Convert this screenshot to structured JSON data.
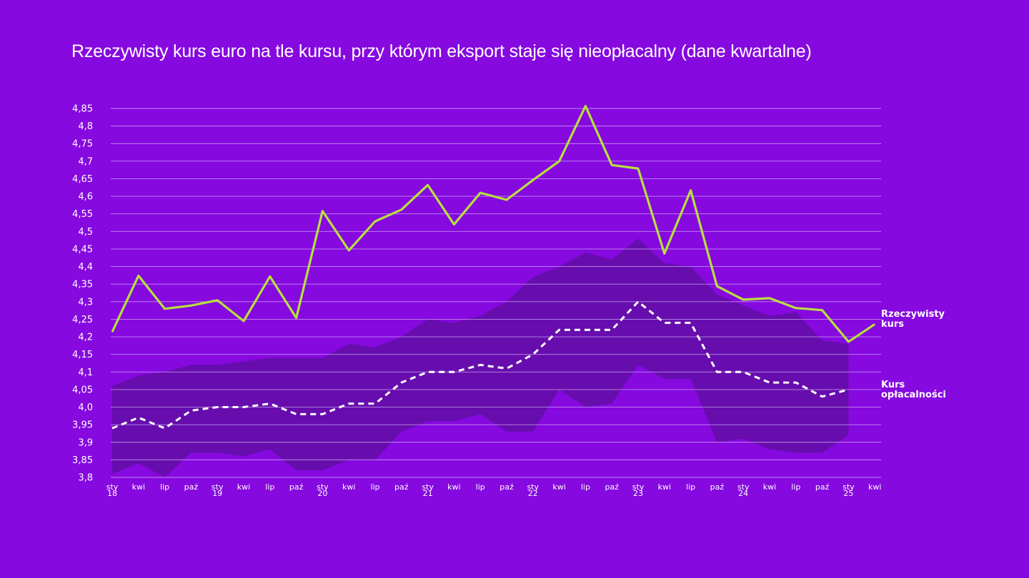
{
  "chart_data": {
    "type": "line",
    "title": "Rzeczywisty kurs euro na tle kursu, przy którym eksport staje się nieopłacalny (dane kwartalne)",
    "xlabel": "",
    "ylabel": "",
    "ylim": [
      3.8,
      4.85
    ],
    "grid": true,
    "y_ticks": [
      "4,85",
      "4,8",
      "4,75",
      "4,7",
      "4,65",
      "4,6",
      "4,55",
      "4,5",
      "4,45",
      "4,4",
      "4,35",
      "4,3",
      "4,25",
      "4,2",
      "4,15",
      "4,1",
      "4,05",
      "4,0",
      "3,95",
      "3,9",
      "3,85",
      "3,8"
    ],
    "y_tick_values": [
      4.85,
      4.8,
      4.75,
      4.7,
      4.65,
      4.6,
      4.55,
      4.5,
      4.45,
      4.4,
      4.35,
      4.3,
      4.25,
      4.2,
      4.15,
      4.1,
      4.05,
      4.0,
      3.95,
      3.9,
      3.85,
      3.8
    ],
    "x_ticks": [
      {
        "label": "sty",
        "sub": "18"
      },
      {
        "label": "kwi",
        "sub": ""
      },
      {
        "label": "lip",
        "sub": ""
      },
      {
        "label": "paź",
        "sub": ""
      },
      {
        "label": "sty",
        "sub": "19"
      },
      {
        "label": "kwi",
        "sub": ""
      },
      {
        "label": "lip",
        "sub": ""
      },
      {
        "label": "paź",
        "sub": ""
      },
      {
        "label": "sty",
        "sub": "20"
      },
      {
        "label": "kwi",
        "sub": ""
      },
      {
        "label": "lip",
        "sub": ""
      },
      {
        "label": "paź",
        "sub": ""
      },
      {
        "label": "sty",
        "sub": "21"
      },
      {
        "label": "kwi",
        "sub": ""
      },
      {
        "label": "lip",
        "sub": ""
      },
      {
        "label": "paź",
        "sub": ""
      },
      {
        "label": "sty",
        "sub": "22"
      },
      {
        "label": "kwi",
        "sub": ""
      },
      {
        "label": "lip",
        "sub": ""
      },
      {
        "label": "paź",
        "sub": ""
      },
      {
        "label": "sty",
        "sub": "23"
      },
      {
        "label": "kwi",
        "sub": ""
      },
      {
        "label": "lip",
        "sub": ""
      },
      {
        "label": "paź",
        "sub": ""
      },
      {
        "label": "sty",
        "sub": "24"
      },
      {
        "label": "kwi",
        "sub": ""
      },
      {
        "label": "lip",
        "sub": ""
      },
      {
        "label": "paź",
        "sub": ""
      },
      {
        "label": "sty",
        "sub": "25"
      },
      {
        "label": "kwi",
        "sub": ""
      }
    ],
    "series": [
      {
        "name": "Rzeczywisty kurs",
        "label_lines": [
          "Rzeczywisty",
          "kurs"
        ],
        "color": "#b6e040",
        "style": "solid",
        "values": [
          4.214,
          4.374,
          4.28,
          4.289,
          4.304,
          4.245,
          4.372,
          4.254,
          4.558,
          4.446,
          4.529,
          4.562,
          4.632,
          4.52,
          4.61,
          4.59,
          4.646,
          4.7,
          4.857,
          4.689,
          4.679,
          4.437,
          4.617,
          4.344,
          4.306,
          4.31,
          4.282,
          4.276,
          4.186,
          4.236
        ]
      },
      {
        "name": "Kurs opłacalności",
        "label_lines": [
          "Kurs",
          "opłacalności"
        ],
        "color": "#ffffff",
        "style": "dashed",
        "values": [
          3.94,
          3.97,
          3.94,
          3.99,
          4.0,
          4.0,
          4.01,
          3.98,
          3.98,
          4.01,
          4.01,
          4.07,
          4.1,
          4.1,
          4.12,
          4.11,
          4.15,
          4.22,
          4.22,
          4.22,
          4.3,
          4.24,
          4.24,
          4.1,
          4.1,
          4.07,
          4.07,
          4.03,
          4.05,
          null
        ]
      }
    ],
    "band": {
      "color": "#5c0f9e",
      "upper": [
        4.06,
        4.09,
        4.1,
        4.12,
        4.12,
        4.13,
        4.14,
        4.14,
        4.14,
        4.18,
        4.17,
        4.2,
        4.25,
        4.24,
        4.26,
        4.3,
        4.37,
        4.4,
        4.44,
        4.42,
        4.48,
        4.41,
        4.4,
        4.32,
        4.29,
        4.26,
        4.27,
        4.19,
        4.18,
        null
      ],
      "lower": [
        3.81,
        3.84,
        3.8,
        3.87,
        3.87,
        3.86,
        3.88,
        3.82,
        3.82,
        3.85,
        3.85,
        3.93,
        3.96,
        3.96,
        3.98,
        3.93,
        3.93,
        4.05,
        4.0,
        4.01,
        4.12,
        4.08,
        4.08,
        3.9,
        3.91,
        3.88,
        3.87,
        3.87,
        3.92,
        null
      ]
    }
  }
}
